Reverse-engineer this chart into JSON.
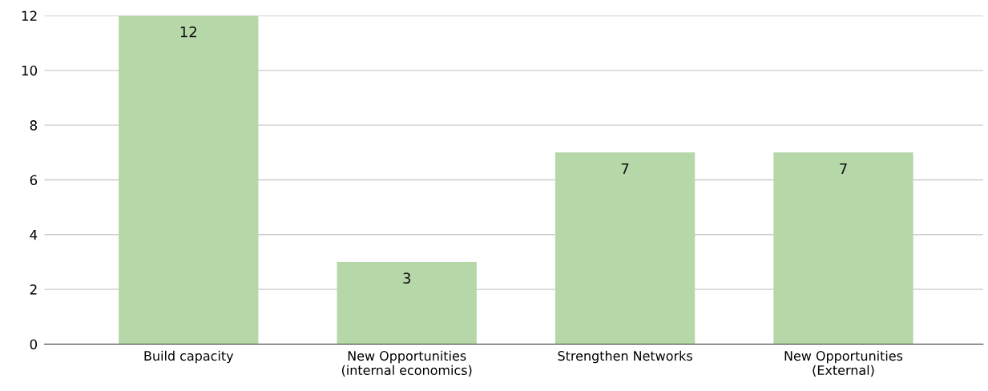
{
  "chart_data": {
    "type": "bar",
    "categories": [
      "Build capacity",
      "New Opportunities\n(internal economics)",
      "Strengthen Networks",
      "New Opportunities\n(External)"
    ],
    "values": [
      12,
      3,
      7,
      7
    ],
    "color": "#b6d7a8",
    "ylim": [
      0,
      12
    ],
    "yticks": [
      0,
      2,
      4,
      6,
      8,
      10,
      12
    ],
    "grid": "y",
    "data_labels": true
  }
}
